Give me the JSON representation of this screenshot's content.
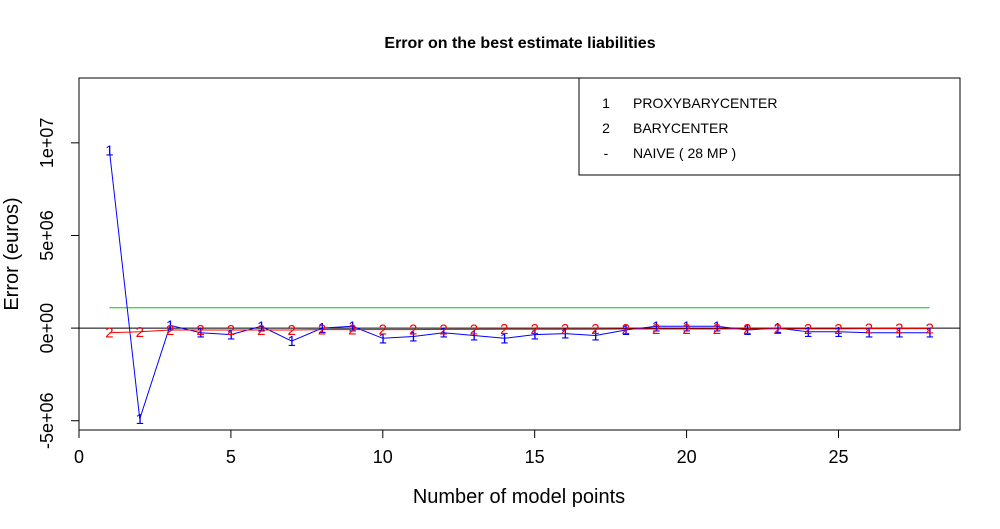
{
  "chart_data": {
    "type": "line",
    "title": "Error on the best estimate liabilities",
    "xlabel": "Number of model points",
    "ylabel": "Error (euros)",
    "xlim": [
      0,
      29
    ],
    "ylim": [
      -5500000,
      13500000
    ],
    "x_ticks": [
      0,
      5,
      10,
      15,
      20,
      25
    ],
    "y_ticks": [
      -5000000,
      0,
      5000000,
      10000000
    ],
    "y_tick_labels": [
      "-5e+06",
      "0e+00",
      "5e+06",
      "1e+07"
    ],
    "grid": false,
    "reference_line_y": 0,
    "legend_position": "top-right",
    "legend": [
      {
        "marker": "1",
        "name": "PROXYBARYCENTER",
        "color": "#0000ff"
      },
      {
        "marker": "2",
        "name": "BARYCENTER",
        "color": "#ff0000"
      },
      {
        "marker": "-",
        "name": "NAIVE ( 28 MP )",
        "color": "#00cc00"
      }
    ],
    "x": [
      1,
      2,
      3,
      4,
      5,
      6,
      7,
      8,
      9,
      10,
      11,
      12,
      13,
      14,
      15,
      16,
      17,
      18,
      19,
      20,
      21,
      22,
      23,
      24,
      25,
      26,
      27,
      28
    ],
    "series": [
      {
        "name": "PROXYBARYCENTER",
        "marker": "1",
        "color": "#0000ff",
        "values": [
          9600000,
          -4900000,
          150000,
          -250000,
          -350000,
          100000,
          -700000,
          0,
          100000,
          -550000,
          -450000,
          -250000,
          -400000,
          -550000,
          -350000,
          -300000,
          -400000,
          -100000,
          100000,
          100000,
          100000,
          -100000,
          0,
          -200000,
          -200000,
          -250000,
          -250000,
          -250000
        ]
      },
      {
        "name": "BARYCENTER",
        "marker": "2",
        "color": "#ff0000",
        "values": [
          -250000,
          -200000,
          -100000,
          -100000,
          -100000,
          -100000,
          -100000,
          -80000,
          -80000,
          -80000,
          -80000,
          -70000,
          -70000,
          -60000,
          -60000,
          -60000,
          -60000,
          -50000,
          -50000,
          -50000,
          -50000,
          -40000,
          -40000,
          -40000,
          -40000,
          -30000,
          -30000,
          -30000
        ]
      },
      {
        "name": "NAIVE ( 28 MP )",
        "marker": "-",
        "color": "#00cc00",
        "values": [
          1100000,
          1100000,
          1100000,
          1100000,
          1100000,
          1100000,
          1100000,
          1100000,
          1100000,
          1100000,
          1100000,
          1100000,
          1100000,
          1100000,
          1100000,
          1100000,
          1100000,
          1100000,
          1100000,
          1100000,
          1100000,
          1100000,
          1100000,
          1100000,
          1100000,
          1100000,
          1100000,
          1100000
        ]
      }
    ]
  }
}
